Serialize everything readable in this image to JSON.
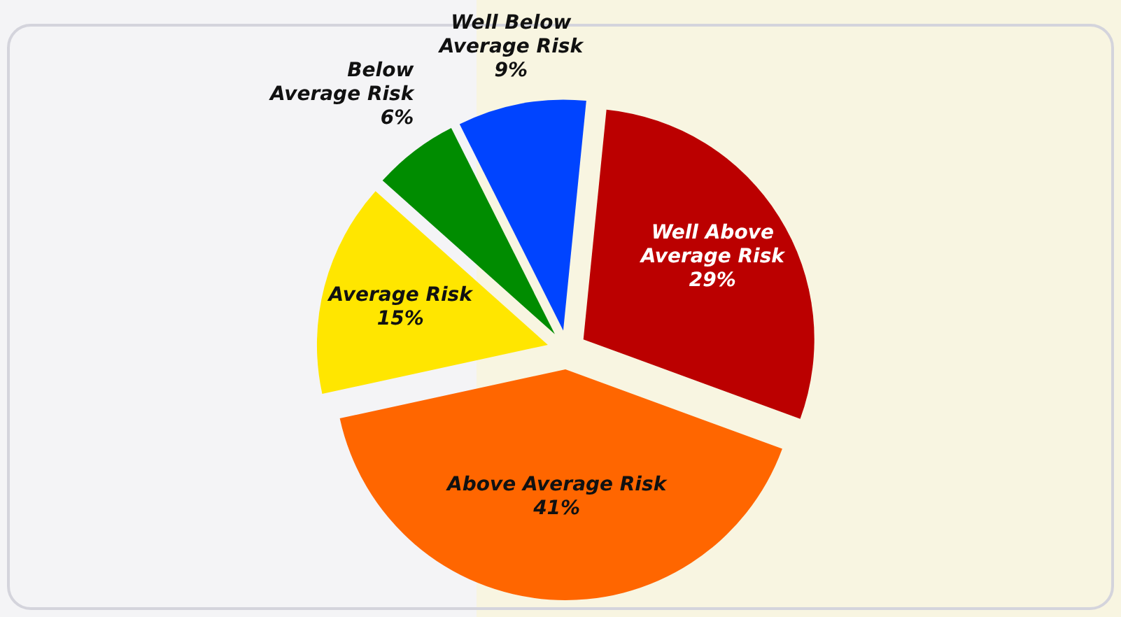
{
  "chart_data": {
    "type": "pie",
    "categories": [
      "Well Above Average Risk",
      "Above Average Risk",
      "Average Risk",
      "Below Average Risk",
      "Well Below Average Risk"
    ],
    "values": [
      29,
      41,
      15,
      6,
      9
    ],
    "value_labels": [
      "29%",
      "41%",
      "15%",
      "6%",
      "9%"
    ],
    "colors": [
      "#bb0000",
      "#ff6600",
      "#ffe600",
      "#008c00",
      "#0044ff"
    ],
    "legend": false
  }
}
